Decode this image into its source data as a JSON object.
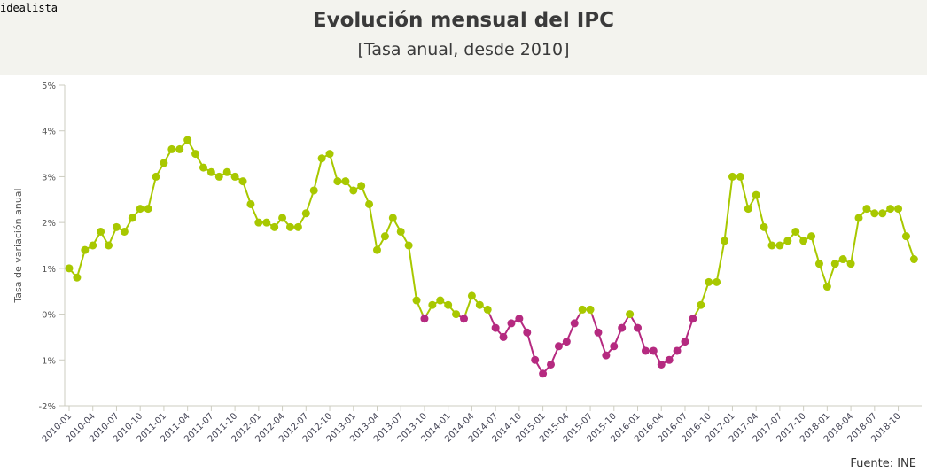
{
  "brand": "idealista",
  "chart_data": {
    "type": "line",
    "title": "Evolución mensual del IPC",
    "subtitle": "[Tasa anual, desde 2010]",
    "ylabel": "Tasa de variación anual",
    "xlabel": "",
    "source": "Fuente: INE",
    "ylim": [
      -2,
      5
    ],
    "yticks": [
      "5%",
      "4%",
      "3%",
      "2%",
      "1%",
      "0%",
      "-1%",
      "-2%"
    ],
    "ytick_values": [
      5,
      4,
      3,
      2,
      1,
      0,
      -1,
      -2
    ],
    "x_start": "2010-01",
    "x_end": "2018-12",
    "xtick_every_months": 3,
    "grid": false,
    "colors": {
      "positive": "#a8c800",
      "negative": "#b52a80"
    },
    "values": [
      1.0,
      0.8,
      1.4,
      1.5,
      1.8,
      1.5,
      1.9,
      1.8,
      2.1,
      2.3,
      2.3,
      3.0,
      3.3,
      3.6,
      3.6,
      3.8,
      3.5,
      3.2,
      3.1,
      3.0,
      3.1,
      3.0,
      2.9,
      2.4,
      2.0,
      2.0,
      1.9,
      2.1,
      1.9,
      1.9,
      2.2,
      2.7,
      3.4,
      3.5,
      2.9,
      2.9,
      2.7,
      2.8,
      2.4,
      1.4,
      1.7,
      2.1,
      1.8,
      1.5,
      0.3,
      -0.1,
      0.2,
      0.3,
      0.2,
      0.0,
      -0.1,
      0.4,
      0.2,
      0.1,
      -0.3,
      -0.5,
      -0.2,
      -0.1,
      -0.4,
      -1.0,
      -1.3,
      -1.1,
      -0.7,
      -0.6,
      -0.2,
      0.1,
      0.1,
      -0.4,
      -0.9,
      -0.7,
      -0.3,
      0.0,
      -0.3,
      -0.8,
      -0.8,
      -1.1,
      -1.0,
      -0.8,
      -0.6,
      -0.1,
      0.2,
      0.7,
      0.7,
      1.6,
      3.0,
      3.0,
      2.3,
      2.6,
      1.9,
      1.5,
      1.5,
      1.6,
      1.8,
      1.6,
      1.7,
      1.1,
      0.6,
      1.1,
      1.2,
      1.1,
      2.1,
      2.3,
      2.2,
      2.2,
      2.3,
      2.3,
      1.7,
      1.2
    ]
  }
}
